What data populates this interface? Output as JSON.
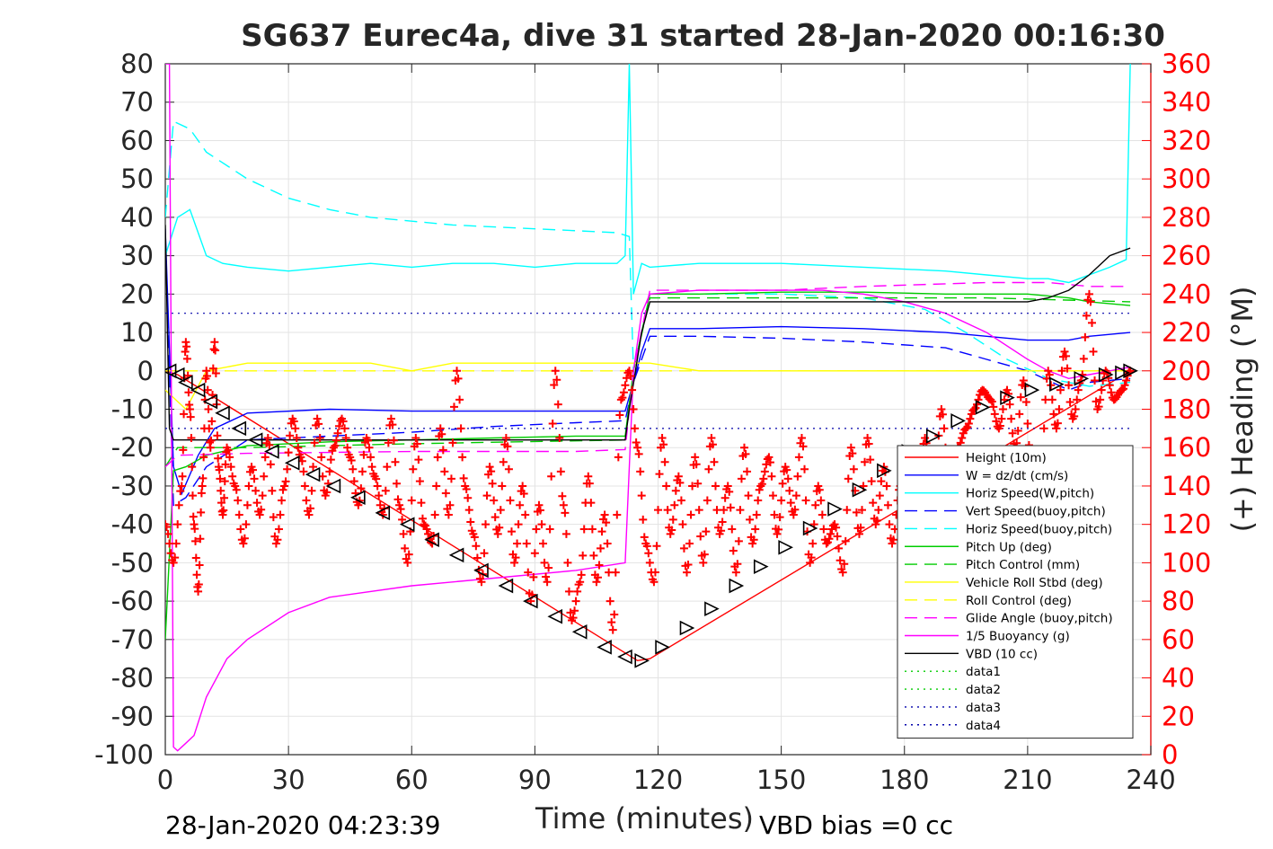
{
  "chart_data": {
    "type": "line",
    "title": "SG637 Eurec4a, dive 31 started 28-Jan-2020 00:16:30",
    "xlabel": "Time (minutes)",
    "ylabel": "",
    "y2label": "(+) Heading (°M)",
    "xlim": [
      0,
      240
    ],
    "ylim": [
      -100,
      80
    ],
    "y2lim": [
      0,
      360
    ],
    "xticks": [
      0,
      30,
      60,
      90,
      120,
      150,
      180,
      210,
      240
    ],
    "yticks": [
      80,
      70,
      60,
      50,
      40,
      30,
      20,
      10,
      0,
      -10,
      -20,
      -30,
      -40,
      -50,
      -60,
      -70,
      -80,
      -90,
      -100
    ],
    "y2ticks": [
      360,
      340,
      320,
      300,
      280,
      260,
      240,
      220,
      200,
      180,
      160,
      140,
      120,
      100,
      80,
      60,
      40,
      20,
      0
    ],
    "grid": true,
    "legend_position": "bottom-right",
    "footer_left": "28-Jan-2020 04:23:39",
    "footer_right": "VBD bias =0 cc",
    "colors": {
      "heading": "#ff0000",
      "axis_left": "#262626",
      "axis_right": "#ff0000"
    },
    "series": [
      {
        "name": "Height (10m)",
        "color": "#ff0000",
        "style": "solid",
        "x": [
          0,
          3,
          115,
          118,
          235
        ],
        "y": [
          0,
          -1,
          -75.5,
          -75,
          0
        ]
      },
      {
        "name": "W = dz/dt (cm/s)",
        "color": "#0000ff",
        "style": "solid",
        "x": [
          0,
          2,
          4,
          8,
          12,
          20,
          40,
          60,
          80,
          100,
          112,
          114,
          116,
          118,
          130,
          150,
          170,
          190,
          200,
          210,
          220,
          225,
          235
        ],
        "y": [
          37,
          -25,
          -32,
          -22,
          -15,
          -11,
          -10,
          -10.5,
          -10.5,
          -10.5,
          -10.5,
          -3,
          5,
          11,
          11,
          11.5,
          11,
          10,
          9,
          8,
          8,
          9,
          10
        ]
      },
      {
        "name": "Horiz Speed(W,pitch)",
        "color": "#00ffff",
        "style": "solid",
        "x": [
          0,
          3,
          6,
          10,
          14,
          20,
          30,
          40,
          50,
          60,
          70,
          80,
          90,
          100,
          110,
          112,
          113,
          114,
          116,
          118,
          130,
          150,
          170,
          190,
          200,
          210,
          215,
          220,
          225,
          230,
          234,
          235
        ],
        "y": [
          30,
          40,
          42,
          30,
          28,
          27,
          26,
          27,
          28,
          27,
          28,
          28,
          27,
          28,
          28,
          30,
          80,
          20,
          28,
          27,
          28,
          28,
          27,
          26,
          25,
          24,
          24,
          23,
          25,
          27,
          29,
          80
        ]
      },
      {
        "name": "Vert Speed(buoy,pitch)",
        "color": "#0000ff",
        "style": "dashed",
        "x": [
          0,
          2,
          5,
          10,
          20,
          40,
          60,
          80,
          100,
          112,
          114,
          118,
          130,
          150,
          170,
          190,
          200,
          210,
          220,
          225,
          235
        ],
        "y": [
          35,
          -35,
          -33,
          -25,
          -18,
          -17,
          -16,
          -14.5,
          -13.5,
          -13,
          -3,
          9,
          9,
          8.5,
          7.5,
          6,
          3,
          0,
          -5,
          -3,
          -2
        ]
      },
      {
        "name": "Horiz Speed(buoy,pitch)",
        "color": "#00ffff",
        "style": "dashed",
        "x": [
          0,
          2,
          6,
          10,
          20,
          30,
          40,
          50,
          60,
          70,
          80,
          90,
          100,
          110,
          113,
          114,
          118,
          130,
          150,
          170,
          185,
          195,
          205,
          215,
          225,
          235
        ],
        "y": [
          40,
          65,
          63,
          57,
          50,
          45,
          42,
          40,
          39,
          38,
          37.5,
          37,
          36.5,
          36,
          35,
          0,
          20,
          20,
          20,
          19,
          16,
          10,
          3,
          -2,
          -4,
          -3
        ]
      },
      {
        "name": "Pitch Up (deg)",
        "color": "#00cc00",
        "style": "solid",
        "x": [
          0,
          2,
          5,
          10,
          20,
          40,
          60,
          80,
          100,
          112,
          114,
          118,
          130,
          150,
          170,
          190,
          210,
          220,
          225,
          235
        ],
        "y": [
          -70,
          -26,
          -25,
          -22,
          -19.5,
          -18.5,
          -18,
          -17.5,
          -17,
          -17,
          0,
          20,
          20,
          20.5,
          20.5,
          20,
          20,
          19,
          18,
          17
        ]
      },
      {
        "name": "Pitch Control (mm)",
        "color": "#00cc00",
        "style": "dashed",
        "x": [
          0,
          3,
          20,
          60,
          112,
          114,
          118,
          150,
          200,
          235
        ],
        "y": [
          -25,
          -20,
          -20,
          -19,
          -18,
          0,
          19,
          19,
          19,
          18
        ]
      },
      {
        "name": "Vehicle Roll Stbd (deg)",
        "color": "#ffff00",
        "style": "solid",
        "x": [
          0,
          5,
          10,
          20,
          30,
          40,
          50,
          60,
          70,
          80,
          90,
          100,
          110,
          112,
          114,
          118,
          130,
          150,
          170,
          190,
          200,
          210,
          220,
          230,
          235
        ],
        "y": [
          -5,
          -10,
          0,
          2,
          2,
          2,
          2,
          0,
          2,
          2,
          2,
          2,
          2,
          2,
          2,
          2,
          0,
          0,
          0,
          0,
          0,
          0,
          0,
          0,
          0
        ]
      },
      {
        "name": "Roll Control (deg)",
        "color": "#ffff00",
        "style": "dashed",
        "x": [
          0,
          20,
          60,
          112,
          118,
          160,
          200,
          235
        ],
        "y": [
          0,
          0,
          0,
          0,
          0,
          0,
          0,
          0
        ]
      },
      {
        "name": "Glide Angle (buoy,pitch)",
        "color": "#ff00ff",
        "style": "dashed",
        "x": [
          0,
          3,
          20,
          60,
          100,
          112,
          114,
          118,
          150,
          170,
          200,
          215,
          225,
          235
        ],
        "y": [
          -25,
          -22,
          -21.5,
          -21,
          -21,
          -20.5,
          0,
          21,
          21,
          22,
          23,
          23,
          22,
          22
        ]
      },
      {
        "name": "1/5 Buoyancy (g)",
        "color": "#ff00ff",
        "style": "solid",
        "x": [
          0,
          1,
          2,
          3,
          5,
          7,
          10,
          15,
          20,
          30,
          40,
          60,
          80,
          100,
          112,
          114,
          116,
          118,
          130,
          150,
          160,
          170,
          180,
          190,
          200,
          210,
          215,
          220,
          225,
          230,
          235
        ],
        "y": [
          80,
          80,
          -98,
          -99,
          -97,
          -95,
          -85,
          -75,
          -70,
          -63,
          -59,
          -56,
          -54,
          -52,
          -50,
          0,
          15,
          20,
          21,
          21,
          21,
          20,
          18,
          15,
          10,
          3,
          0,
          -2,
          -1,
          0,
          1
        ]
      },
      {
        "name": "VBD (10 cc)",
        "color": "#000000",
        "style": "solid",
        "x": [
          0,
          1,
          2,
          60,
          100,
          112,
          113,
          116,
          118,
          200,
          210,
          215,
          220,
          225,
          230,
          235
        ],
        "y": [
          38,
          -15,
          -18,
          -18,
          -18,
          -18,
          -10,
          10,
          18,
          18,
          18,
          19,
          21,
          25,
          30,
          32
        ]
      },
      {
        "name": "data1",
        "color": "#00cc00",
        "style": "dotted",
        "x": [],
        "y": []
      },
      {
        "name": "data2",
        "color": "#00cc00",
        "style": "dotted",
        "x": [],
        "y": []
      },
      {
        "name": "data3",
        "color": "#0000aa",
        "style": "dotted",
        "x": [
          0,
          235
        ],
        "y": [
          15,
          15
        ]
      },
      {
        "name": "data4",
        "color": "#0000aa",
        "style": "dotted",
        "x": [
          0,
          235
        ],
        "y": [
          -15,
          -15
        ]
      }
    ],
    "heading": {
      "name": "(+) Heading (°M)",
      "color": "#ff0000",
      "marker": "+",
      "x": [
        0,
        2,
        4,
        5,
        6,
        7,
        8,
        9,
        10,
        11,
        12,
        13,
        14,
        15,
        17,
        19,
        21,
        23,
        25,
        27,
        29,
        31,
        33,
        35,
        37,
        39,
        41,
        43,
        45,
        47,
        49,
        51,
        53,
        55,
        57,
        59,
        61,
        63,
        65,
        67,
        69,
        71,
        73,
        75,
        77,
        79,
        81,
        83,
        85,
        87,
        89,
        91,
        93,
        95,
        97,
        99,
        101,
        103,
        105,
        107,
        109,
        111,
        113,
        115,
        117,
        119,
        121,
        123,
        125,
        127,
        129,
        131,
        133,
        135,
        137,
        139,
        141,
        143,
        145,
        147,
        149,
        151,
        153,
        155,
        157,
        159,
        161,
        163,
        165,
        167,
        169,
        171,
        173,
        175,
        177,
        179,
        181,
        183,
        185,
        187,
        189,
        191,
        193,
        195,
        197,
        199,
        201,
        203,
        205,
        207,
        209,
        211,
        213,
        215,
        217,
        219,
        221,
        223,
        225,
        227,
        229,
        231,
        233,
        235
      ],
      "y": [
        120,
        100,
        140,
        215,
        180,
        120,
        85,
        140,
        200,
        160,
        215,
        150,
        125,
        160,
        140,
        110,
        150,
        125,
        165,
        110,
        140,
        175,
        155,
        125,
        175,
        135,
        160,
        175,
        155,
        130,
        165,
        145,
        125,
        175,
        130,
        100,
        165,
        120,
        110,
        170,
        125,
        200,
        140,
        115,
        90,
        150,
        115,
        165,
        100,
        140,
        80,
        130,
        90,
        200,
        130,
        70,
        90,
        145,
        90,
        125,
        65,
        185,
        200,
        160,
        110,
        90,
        165,
        115,
        145,
        95,
        155,
        100,
        165,
        115,
        140,
        95,
        160,
        110,
        140,
        155,
        115,
        150,
        125,
        165,
        100,
        140,
        110,
        120,
        95,
        160,
        115,
        165,
        120,
        150,
        110,
        140,
        155,
        120,
        165,
        125,
        180,
        140,
        160,
        170,
        180,
        190,
        185,
        170,
        190,
        160,
        195,
        150,
        140,
        200,
        170,
        210,
        175,
        195,
        240,
        180,
        200,
        185,
        190,
        200
      ]
    },
    "height_markers": {
      "name": "Height (10m)",
      "color": "#000000",
      "x": [
        1,
        3,
        5,
        8,
        11,
        14,
        18,
        22,
        26,
        31,
        36,
        41,
        47,
        53,
        59,
        65,
        71,
        77,
        83,
        89,
        95,
        101,
        107,
        112,
        116,
        121,
        127,
        133,
        139,
        145,
        151,
        157,
        163,
        169,
        175,
        181,
        187,
        193,
        199,
        205,
        211,
        217,
        223,
        229,
        233,
        235
      ],
      "y": [
        0,
        -1,
        -3,
        -5,
        -8,
        -11,
        -15,
        -18,
        -21,
        -24,
        -27,
        -30,
        -33,
        -37,
        -40,
        -44,
        -48,
        -52,
        -56,
        -60,
        -64,
        -68,
        -72,
        -74.5,
        -75.5,
        -72,
        -67,
        -62,
        -56,
        -51,
        -46,
        -41,
        -36,
        -31,
        -26,
        -21,
        -17,
        -13,
        -9.5,
        -7,
        -5,
        -3.5,
        -2,
        -1,
        -0.5,
        0
      ]
    }
  }
}
